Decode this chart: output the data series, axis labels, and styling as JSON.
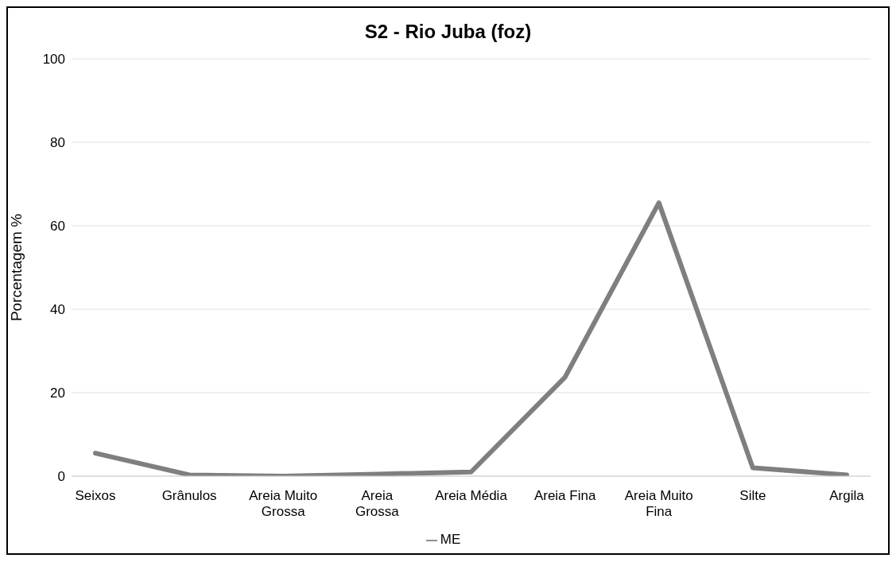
{
  "chart_data": {
    "type": "line",
    "title": "S2 - Rio Juba (foz)",
    "ylabel": "Porcentagem %",
    "categories": [
      "Seixos",
      "Grânulos",
      "Areia Muito Grossa",
      "Areia Grossa",
      "Areia Média",
      "Areia Fina",
      "Areia Muito Fina",
      "Silte",
      "Argila"
    ],
    "series": [
      {
        "name": "ME",
        "color": "#7f7f7f",
        "values": [
          5.5,
          0.3,
          0,
          0.5,
          1,
          23.7,
          65.5,
          2,
          0.3
        ]
      }
    ],
    "ylim": [
      0,
      100
    ],
    "yticks": [
      0,
      20,
      40,
      60,
      80,
      100
    ],
    "grid": "y",
    "legend": "bottom",
    "marker": "none",
    "line_style": "solid"
  }
}
